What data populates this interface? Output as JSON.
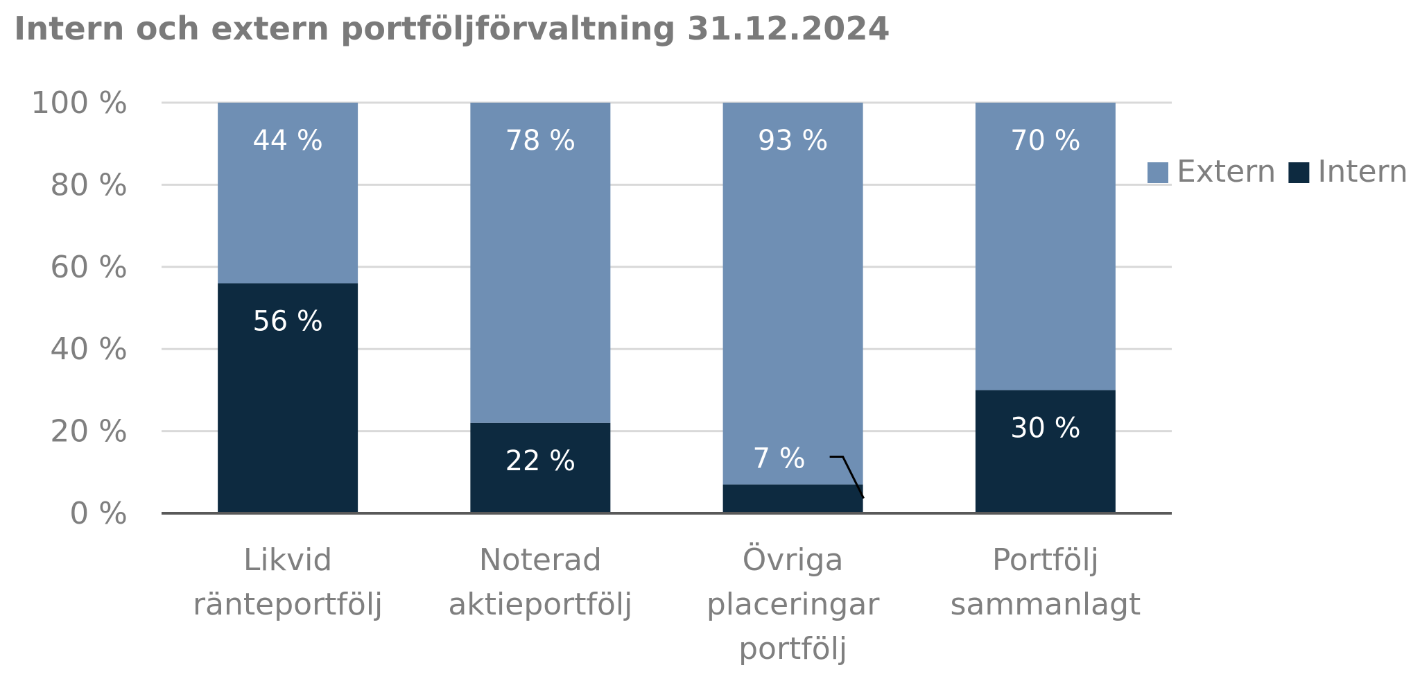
{
  "chart_data": {
    "type": "bar",
    "stacked": true,
    "title": "Intern och extern portföljförvaltning 31.12.2024",
    "categories": [
      [
        "Likvid",
        "ränteportfölj"
      ],
      [
        "Noterad",
        "aktieportfölj"
      ],
      [
        "Övriga",
        "placeringar",
        "portfölj"
      ],
      [
        "Portfölj",
        "sammanlagt"
      ]
    ],
    "series": [
      {
        "name": "Intern",
        "values": [
          56,
          22,
          7,
          30
        ],
        "labels": [
          "56 %",
          "22 %",
          "7 %",
          "30 %"
        ],
        "color": "#0d2a40"
      },
      {
        "name": "Extern",
        "values": [
          44,
          78,
          93,
          70
        ],
        "labels": [
          "44 %",
          "78 %",
          "93 %",
          "70 %"
        ],
        "color": "#6f8fb4"
      }
    ],
    "ylim": [
      0,
      100
    ],
    "yticks": [
      0,
      20,
      40,
      60,
      80,
      100
    ],
    "ytick_labels": [
      "0 %",
      "20 %",
      "40 %",
      "60 %",
      "80 %",
      "100 %"
    ],
    "grid": true,
    "legend": {
      "placement": "right",
      "entries": [
        "Extern",
        "Intern"
      ]
    },
    "colors": {
      "grid": "#d9d9d9",
      "axis": "#595959",
      "text": "#7f7f7f",
      "label": "#ffffff"
    }
  }
}
